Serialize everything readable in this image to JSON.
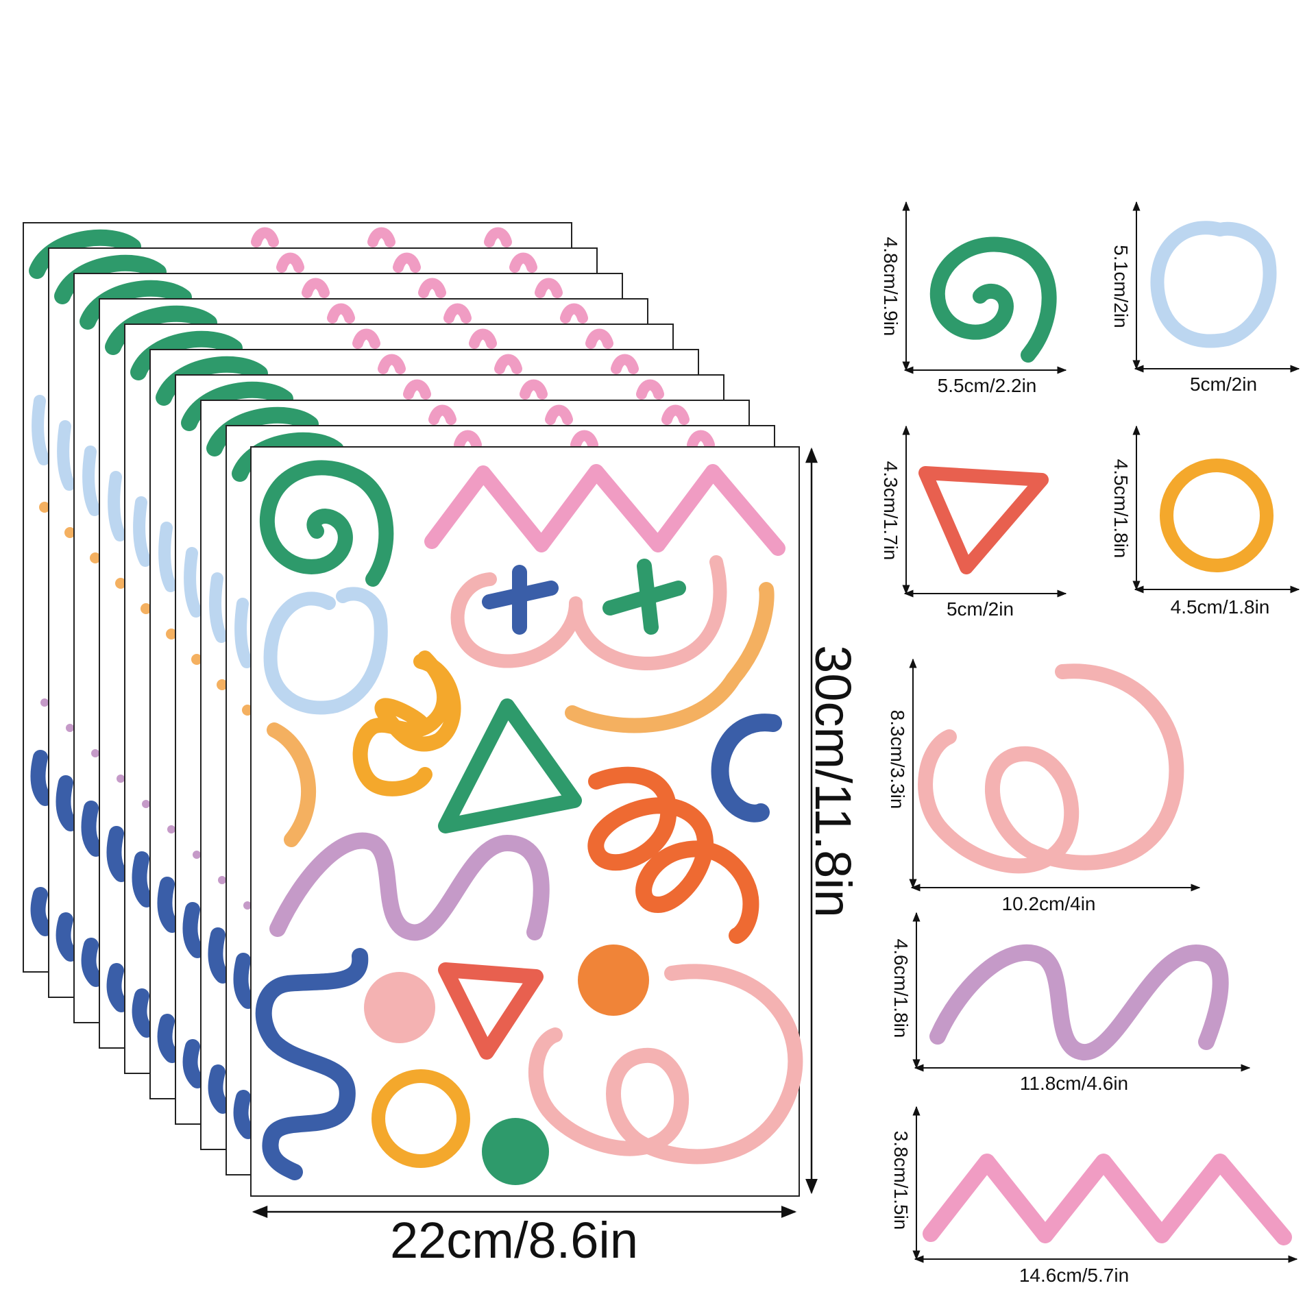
{
  "main_sheet": {
    "width_label": "22cm/8.6in",
    "height_label": "30cm/11.8in",
    "stack_count": 10
  },
  "stickers": [
    {
      "id": "spiral",
      "color": "#2e9a6b",
      "width_label": "5.5cm/2.2in",
      "height_label": "4.8cm/1.9in"
    },
    {
      "id": "oval",
      "color": "#bcd6f0",
      "width_label": "5cm/2in",
      "height_label": "5.1cm/2in"
    },
    {
      "id": "triangle",
      "color": "#e8604f",
      "width_label": "5cm/2in",
      "height_label": "4.3cm/1.7in"
    },
    {
      "id": "ring",
      "color": "#f4a82c",
      "width_label": "4.5cm/1.8in",
      "height_label": "4.5cm/1.8in"
    },
    {
      "id": "loop",
      "color": "#f4b2b2",
      "width_label": "10.2cm/4in",
      "height_label": "8.3cm/3.3in"
    },
    {
      "id": "wave",
      "color": "#c59ac8",
      "width_label": "11.8cm/4.6in",
      "height_label": "4.6cm/1.8in"
    },
    {
      "id": "zigzag",
      "color": "#f09cc3",
      "width_label": "14.6cm/5.7in",
      "height_label": "3.8cm/1.5in"
    }
  ],
  "colors": {
    "green": "#2e9a6b",
    "light_blue": "#bcd6f0",
    "pink": "#f09cc3",
    "peach": "#f4b2b2",
    "blue": "#3a5ea8",
    "orange": "#f4b060",
    "yellow": "#f4a82c",
    "purple": "#c59ac8",
    "red_orange": "#ee6a32",
    "red": "#e8604f",
    "dot_orange": "#f08438"
  }
}
